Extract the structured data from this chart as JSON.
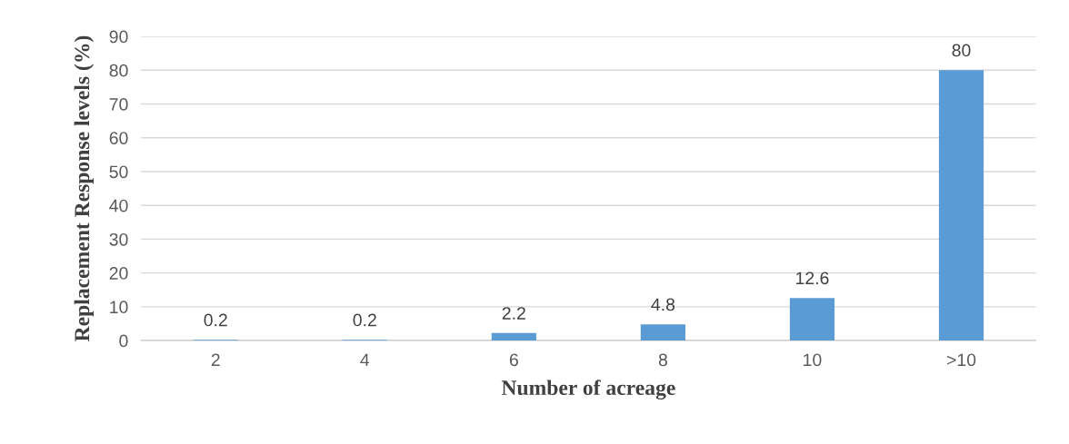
{
  "chart_data": {
    "type": "bar",
    "xlabel": "Number of acreage",
    "ylabel": "Replacement Response levels (%)",
    "categories": [
      "2",
      "4",
      "6",
      "8",
      "10",
      ">10"
    ],
    "values": [
      0.2,
      0.2,
      2.2,
      4.8,
      12.6,
      80
    ],
    "color": "#5b9bd5",
    "ylim": [
      0,
      90
    ],
    "yticks": [
      0,
      10,
      20,
      30,
      40,
      50,
      60,
      70,
      80,
      90
    ],
    "grid": "y",
    "data_labels": true
  }
}
